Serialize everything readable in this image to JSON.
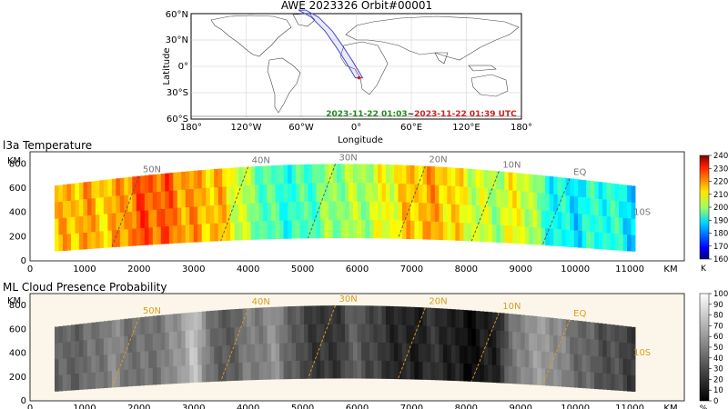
{
  "chart_data": [
    {
      "type": "map",
      "title": "AWE 2023326 Orbit#00001",
      "xlabel": "Longitude",
      "ylabel": "Latitude",
      "xlim": [
        -180,
        180
      ],
      "ylim": [
        -60,
        60
      ],
      "xticks": [
        "180°",
        "120°W",
        "60°W",
        "0°",
        "60°E",
        "120°E",
        "180°"
      ],
      "yticks": [
        "60°N",
        "30°N",
        "0°",
        "30°S",
        "60°S"
      ],
      "orbit_start": "2023-11-22 01:03",
      "separator": "~",
      "orbit_end": "2023-11-22 01:39 UTC",
      "track": [
        [
          -59,
          64
        ],
        [
          -45,
          56
        ],
        [
          -30,
          40
        ],
        [
          -18,
          22
        ],
        [
          -8,
          6
        ],
        [
          3,
          -13
        ]
      ],
      "colors": {
        "start": "#1f8a1f",
        "end": "#cc2222",
        "track": "#4a4ad0"
      }
    },
    {
      "type": "heatmap",
      "title": "l3a Temperature",
      "xlabel": "KM",
      "ylabel": "KM",
      "xlim": [
        0,
        12000
      ],
      "ylim": [
        0,
        900
      ],
      "xticks": [
        "0",
        "1000",
        "2000",
        "3000",
        "4000",
        "5000",
        "6000",
        "7000",
        "8000",
        "9000",
        "10000",
        "11000"
      ],
      "yticks": [
        "0",
        "200",
        "400",
        "600",
        "800"
      ],
      "colorbar": {
        "unit": "K",
        "min": 160,
        "max": 240,
        "ticks": [
          "160",
          "170",
          "180",
          "190",
          "200",
          "210",
          "220",
          "230",
          "240"
        ]
      },
      "latitude_markers": [
        {
          "label": "50N",
          "x": 2000
        },
        {
          "label": "40N",
          "x": 4000
        },
        {
          "label": "30N",
          "x": 5600
        },
        {
          "label": "20N",
          "x": 7250
        },
        {
          "label": "10N",
          "x": 8600
        },
        {
          "label": "EQ",
          "x": 9900
        },
        {
          "label": "10S",
          "x": 11000
        }
      ],
      "values_along_track": [
        {
          "x": 500,
          "value": 212
        },
        {
          "x": 1000,
          "value": 218
        },
        {
          "x": 1500,
          "value": 216
        },
        {
          "x": 2000,
          "value": 221
        },
        {
          "x": 2500,
          "value": 222
        },
        {
          "x": 3000,
          "value": 219
        },
        {
          "x": 3500,
          "value": 214
        },
        {
          "x": 4000,
          "value": 200
        },
        {
          "x": 4500,
          "value": 196
        },
        {
          "x": 5000,
          "value": 195
        },
        {
          "x": 5500,
          "value": 199
        },
        {
          "x": 6000,
          "value": 203
        },
        {
          "x": 6500,
          "value": 210
        },
        {
          "x": 7000,
          "value": 213
        },
        {
          "x": 7500,
          "value": 215
        },
        {
          "x": 8000,
          "value": 211
        },
        {
          "x": 8500,
          "value": 203
        },
        {
          "x": 9000,
          "value": 208
        },
        {
          "x": 9500,
          "value": 194
        },
        {
          "x": 10000,
          "value": 190
        },
        {
          "x": 10500,
          "value": 192
        },
        {
          "x": 11000,
          "value": 188
        }
      ]
    },
    {
      "type": "heatmap",
      "title": "ML Cloud Presence Probability",
      "xlabel": "KM",
      "ylabel": "KM",
      "xlim": [
        0,
        12000
      ],
      "ylim": [
        0,
        900
      ],
      "xticks": [
        "0",
        "1000",
        "2000",
        "3000",
        "4000",
        "5000",
        "6000",
        "7000",
        "8000",
        "9000",
        "10000",
        "11000"
      ],
      "yticks": [
        "0",
        "200",
        "400",
        "600",
        "800"
      ],
      "colorbar": {
        "unit": "%",
        "min": 0,
        "max": 100,
        "ticks": [
          "0",
          "10",
          "20",
          "30",
          "40",
          "50",
          "60",
          "70",
          "80",
          "90",
          "100"
        ]
      },
      "latitude_markers": [
        {
          "label": "50N",
          "x": 2000
        },
        {
          "label": "40N",
          "x": 4000
        },
        {
          "label": "30N",
          "x": 5600
        },
        {
          "label": "20N",
          "x": 7250
        },
        {
          "label": "10N",
          "x": 8600
        },
        {
          "label": "EQ",
          "x": 9900
        },
        {
          "label": "10S",
          "x": 11000
        }
      ],
      "values_along_track": [
        {
          "x": 500,
          "value": 35
        },
        {
          "x": 1000,
          "value": 42
        },
        {
          "x": 1500,
          "value": 55
        },
        {
          "x": 2000,
          "value": 40
        },
        {
          "x": 2500,
          "value": 48
        },
        {
          "x": 3000,
          "value": 78
        },
        {
          "x": 3500,
          "value": 30
        },
        {
          "x": 4000,
          "value": 45
        },
        {
          "x": 4500,
          "value": 58
        },
        {
          "x": 5000,
          "value": 28
        },
        {
          "x": 5500,
          "value": 15
        },
        {
          "x": 6000,
          "value": 38
        },
        {
          "x": 6500,
          "value": 22
        },
        {
          "x": 7000,
          "value": 10
        },
        {
          "x": 7500,
          "value": 18
        },
        {
          "x": 8000,
          "value": 8
        },
        {
          "x": 8500,
          "value": 12
        },
        {
          "x": 9000,
          "value": 52
        },
        {
          "x": 9500,
          "value": 62
        },
        {
          "x": 10000,
          "value": 45
        },
        {
          "x": 10500,
          "value": 30
        },
        {
          "x": 11000,
          "value": 25
        }
      ]
    }
  ]
}
